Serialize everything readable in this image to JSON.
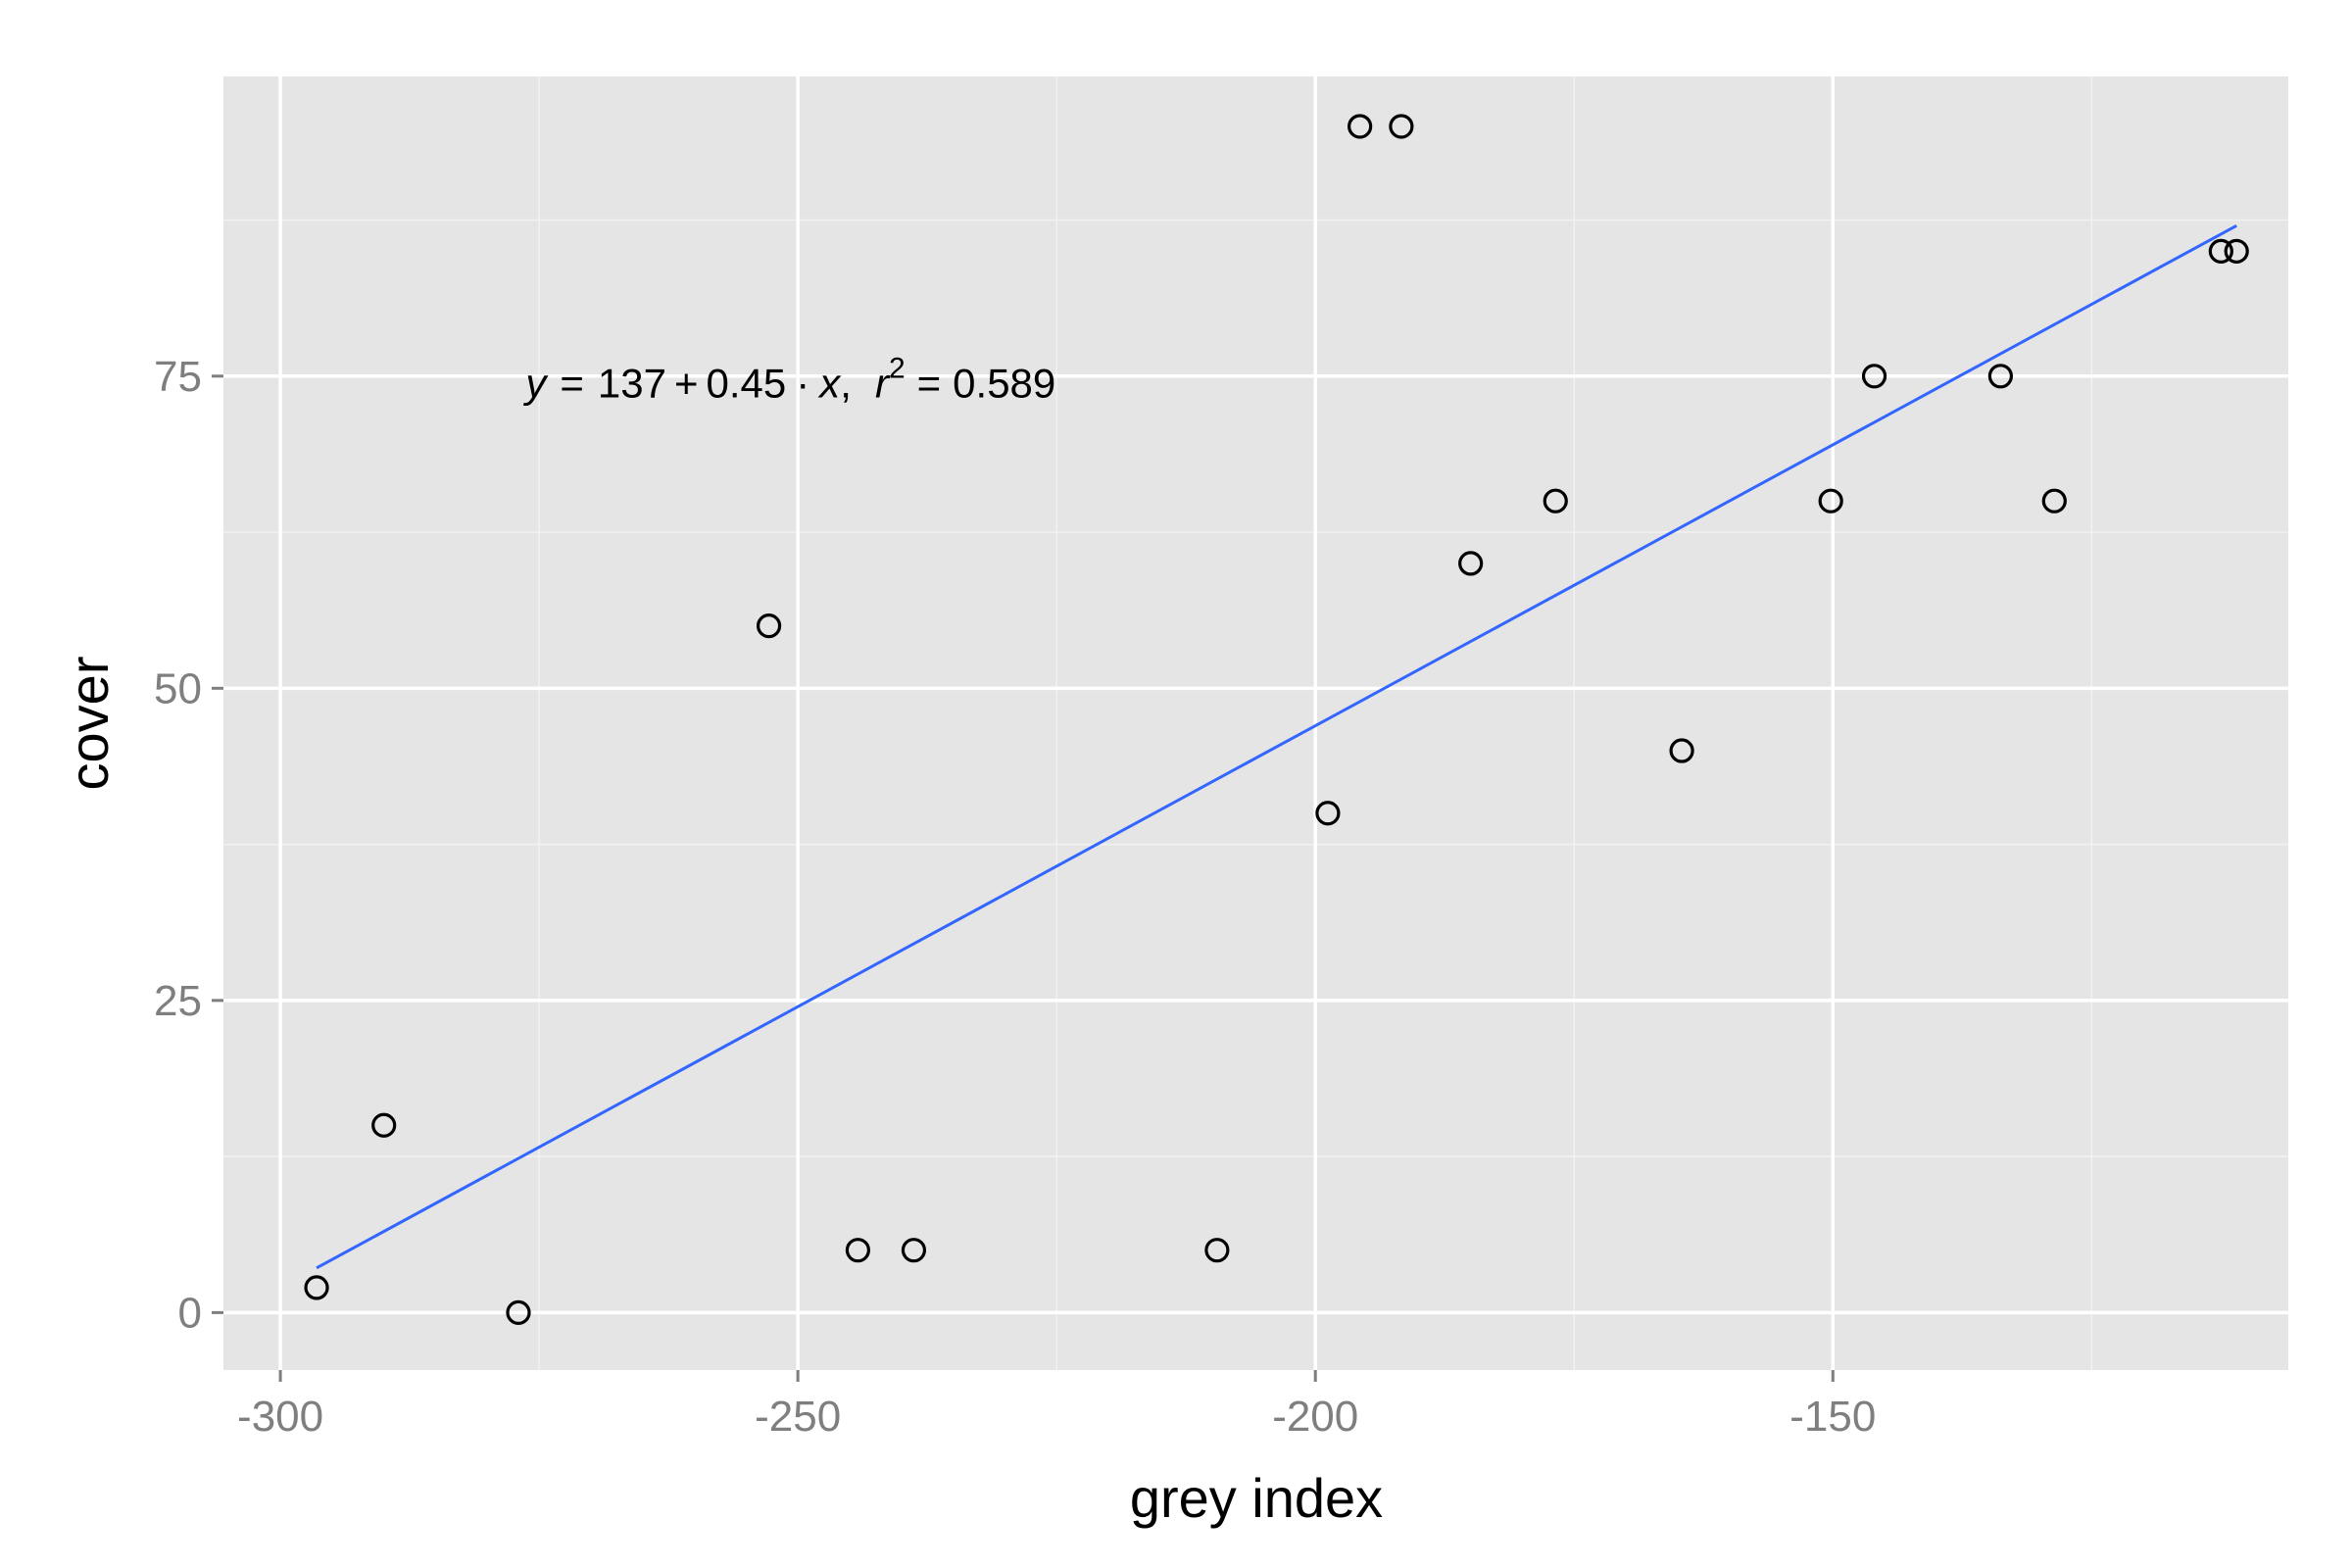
{
  "chart_data": {
    "type": "scatter",
    "xlabel": "grey index",
    "ylabel": "cover",
    "xlim": [
      -305.5,
      -106
    ],
    "ylim": [
      -4.6,
      99
    ],
    "x_ticks": [
      -300,
      -250,
      -200,
      -150
    ],
    "x_tick_labels": [
      "-300",
      "-250",
      "-200",
      "-150"
    ],
    "x_minor_ticks": [
      -275,
      -225,
      -175,
      -125
    ],
    "y_ticks": [
      0,
      25,
      50,
      75
    ],
    "y_tick_labels": [
      "0",
      "25",
      "50",
      "75"
    ],
    "y_minor_ticks": [
      12.5,
      37.5,
      62.5,
      87.5
    ],
    "grid": true,
    "colors": {
      "panel_background": "#e5e5e5",
      "grid_major": "#ffffff",
      "grid_minor": "#f2f2f2",
      "fit_line": "#3366ff",
      "points": "#000000"
    },
    "points": [
      {
        "x": -296.5,
        "y": 2
      },
      {
        "x": -290,
        "y": 15
      },
      {
        "x": -277,
        "y": 0
      },
      {
        "x": -252.8,
        "y": 55
      },
      {
        "x": -244.2,
        "y": 5
      },
      {
        "x": -238.8,
        "y": 5
      },
      {
        "x": -209.5,
        "y": 5
      },
      {
        "x": -198.8,
        "y": 40
      },
      {
        "x": -195.7,
        "y": 95
      },
      {
        "x": -191.7,
        "y": 95
      },
      {
        "x": -185,
        "y": 60
      },
      {
        "x": -176.8,
        "y": 65
      },
      {
        "x": -164.6,
        "y": 45
      },
      {
        "x": -150.2,
        "y": 65
      },
      {
        "x": -146,
        "y": 75
      },
      {
        "x": -133.8,
        "y": 75
      },
      {
        "x": -128.6,
        "y": 65
      },
      {
        "x": -112.5,
        "y": 85
      },
      {
        "x": -111,
        "y": 85
      }
    ],
    "fit_line": {
      "intercept": 137,
      "slope": 0.45,
      "x_range": [
        -296.5,
        -111
      ]
    },
    "annotation": {
      "y_var": "y",
      "eq_sign": "=",
      "intercept_text": "137",
      "plus": "+",
      "slope_text": "0.45",
      "dot": "·",
      "x_var": "x",
      "comma": ",",
      "r_var": "r",
      "r_exp": "2",
      "r2_eq": "=",
      "r2_text": "0.589",
      "anchor": {
        "x": -276.3,
        "y": 74.4
      }
    }
  }
}
